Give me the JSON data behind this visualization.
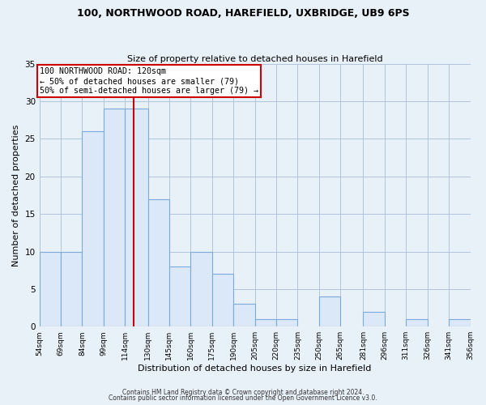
{
  "title1": "100, NORTHWOOD ROAD, HAREFIELD, UXBRIDGE, UB9 6PS",
  "title2": "Size of property relative to detached houses in Harefield",
  "xlabel": "Distribution of detached houses by size in Harefield",
  "ylabel": "Number of detached properties",
  "footer1": "Contains HM Land Registry data © Crown copyright and database right 2024.",
  "footer2": "Contains public sector information licensed under the Open Government Licence v3.0.",
  "bar_heights": [
    10,
    10,
    26,
    29,
    29,
    17,
    8,
    10,
    7,
    3,
    1,
    1,
    0,
    4,
    0,
    2,
    0,
    1,
    0,
    1
  ],
  "tick_labels": [
    "54sqm",
    "69sqm",
    "84sqm",
    "99sqm",
    "114sqm",
    "130sqm",
    "145sqm",
    "160sqm",
    "175sqm",
    "190sqm",
    "205sqm",
    "220sqm",
    "235sqm",
    "250sqm",
    "265sqm",
    "281sqm",
    "296sqm",
    "311sqm",
    "326sqm",
    "341sqm",
    "356sqm"
  ],
  "tick_positions": [
    54,
    69,
    84,
    99,
    114,
    130,
    145,
    160,
    175,
    190,
    205,
    220,
    235,
    250,
    265,
    281,
    296,
    311,
    326,
    341,
    356
  ],
  "bar_color": "#dae8f7",
  "bar_edge_color": "#7aabdb",
  "red_line_x": 120,
  "annotation_title": "100 NORTHWOOD ROAD: 120sqm",
  "annotation_line1": "← 50% of detached houses are smaller (79)",
  "annotation_line2": "50% of semi-detached houses are larger (79) →",
  "annotation_box_color": "#ffffff",
  "annotation_box_edge": "#cc0000",
  "red_line_color": "#cc0000",
  "ylim": [
    0,
    35
  ],
  "yticks": [
    0,
    5,
    10,
    15,
    20,
    25,
    30,
    35
  ],
  "background_color": "#e8f0f8",
  "plot_bg_color": "#e8f0f8",
  "grid_color": "#b0c4de",
  "title1_fontsize": 9.0,
  "title2_fontsize": 8.0
}
